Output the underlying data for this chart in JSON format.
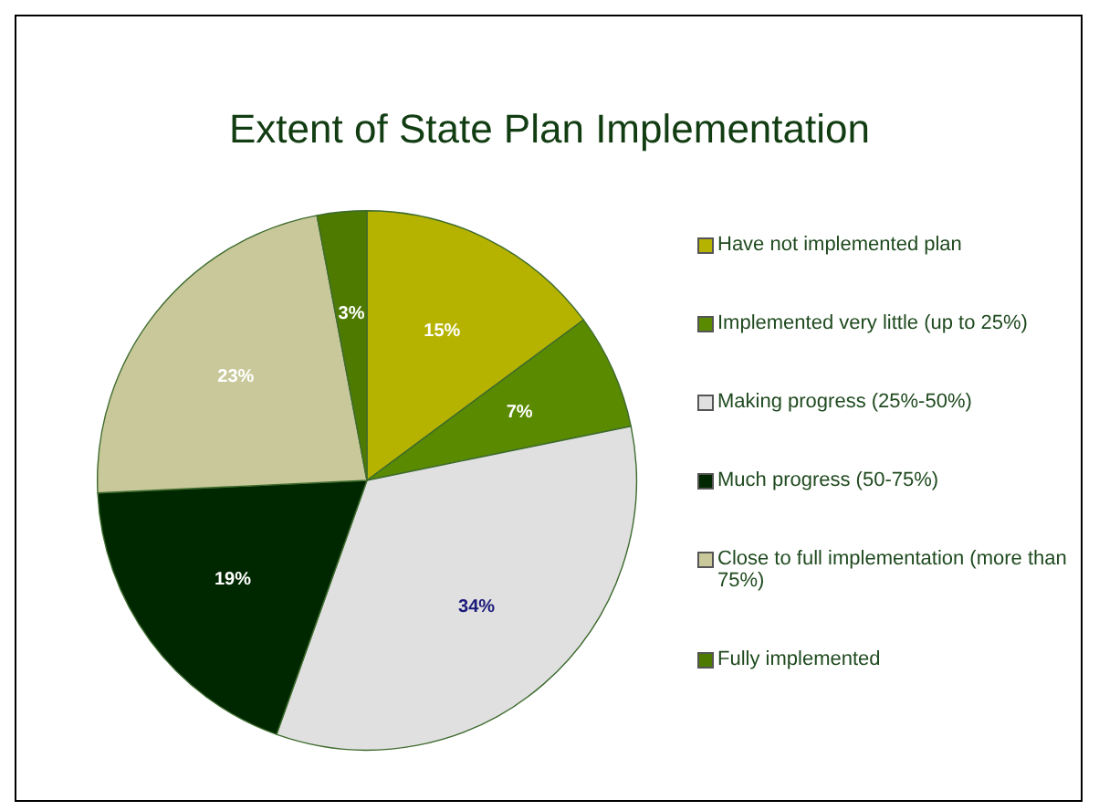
{
  "chart_data": {
    "type": "pie",
    "title": "Extent of State Plan Implementation",
    "categories": [
      "Have not implemented plan",
      "Implemented very little (up to 25%)",
      "Making progress (25%-50%)",
      "Much progress (50-75%)",
      "Close to full implementation (more than 75%)",
      "Fully implemented"
    ],
    "values": [
      15,
      7,
      34,
      19,
      23,
      3
    ],
    "value_labels": [
      "15%",
      "7%",
      "34%",
      "19%",
      "23%",
      "3%"
    ],
    "colors": [
      "#b5b300",
      "#5a8a00",
      "#e0e0e0",
      "#002800",
      "#c8c89a",
      "#4e7a00"
    ],
    "legend": "right"
  }
}
